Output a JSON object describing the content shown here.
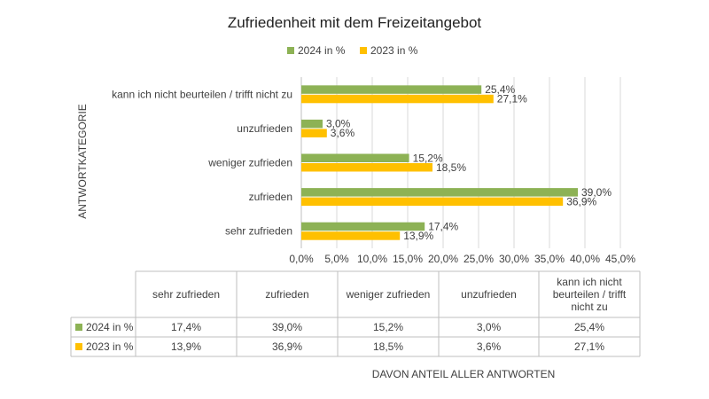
{
  "chart_data": {
    "type": "bar",
    "orientation": "horizontal",
    "title": "Zufriedenheit mit dem Freizeitangebot",
    "ylabel": "ANTWORTKATEGORIE",
    "xlabel": "DAVON ANTEIL ALLER ANTWORTEN",
    "categories": [
      "sehr zufrieden",
      "zufrieden",
      "weniger zufrieden",
      "unzufrieden",
      "kann ich nicht beurteilen / trifft nicht zu"
    ],
    "category_labels_wrapped": [
      [
        "sehr zufrieden"
      ],
      [
        "zufrieden"
      ],
      [
        "weniger zufrieden"
      ],
      [
        "unzufrieden"
      ],
      [
        "kann ich nicht",
        "beurteilen / trifft",
        "nicht zu"
      ]
    ],
    "series": [
      {
        "name": "2024 in %",
        "color": "#8db255",
        "values": [
          17.4,
          39.0,
          15.2,
          3.0,
          25.4
        ],
        "labels": [
          "17,4%",
          "39,0%",
          "15,2%",
          "3,0%",
          "25,4%"
        ]
      },
      {
        "name": "2023 in %",
        "color": "#ffc000",
        "values": [
          13.9,
          36.9,
          18.5,
          3.6,
          27.1
        ],
        "labels": [
          "13,9%",
          "36,9%",
          "18,5%",
          "3,6%",
          "27,1%"
        ]
      }
    ],
    "xlim": [
      0,
      45
    ],
    "xticks": [
      0,
      5,
      10,
      15,
      20,
      25,
      30,
      35,
      40,
      45
    ],
    "xtick_labels": [
      "0,0%",
      "5,0%",
      "10,0%",
      "15,0%",
      "20,0%",
      "25,0%",
      "30,0%",
      "35,0%",
      "40,0%",
      "45,0%"
    ],
    "grid": true,
    "legend": "top",
    "data_table": true
  }
}
